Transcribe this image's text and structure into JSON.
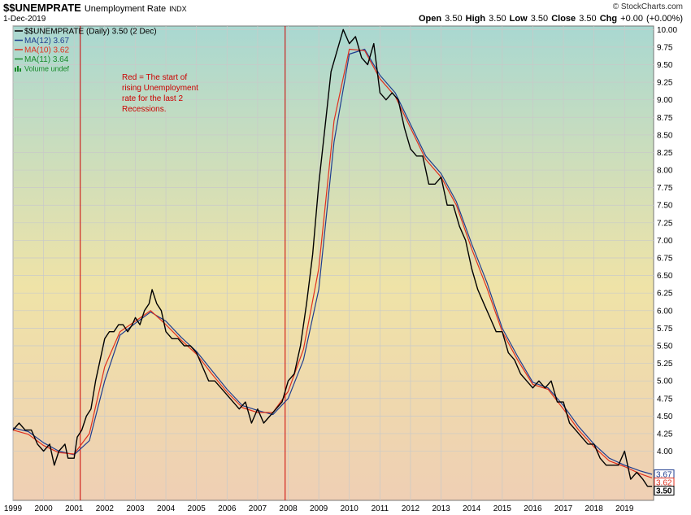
{
  "header": {
    "symbol": "$$UNEMPRATE",
    "name": "Unemployment Rate",
    "exchange": "INDX",
    "date": "1-Dec-2019",
    "brand": "© StockCharts.com",
    "open_label": "Open",
    "open": "3.50",
    "high_label": "High",
    "high": "3.50",
    "low_label": "Low",
    "low": "3.50",
    "close_label": "Close",
    "close": "3.50",
    "chg_label": "Chg",
    "chg": "+0.00 (+0.00%)"
  },
  "legend": [
    {
      "text": "$$UNEMPRATE (Daily) 3.50 (2 Dec)",
      "color": "#000000",
      "mark": "line"
    },
    {
      "text": "MA(12) 3.67",
      "color": "#1f3d8f",
      "mark": "line"
    },
    {
      "text": "MA(10) 3.62",
      "color": "#e0301e",
      "mark": "line"
    },
    {
      "text": "MA(11) 3.64",
      "color": "#1a8a2a",
      "mark": "line"
    },
    {
      "text": "Volume undef",
      "color": "#1a8a2a",
      "mark": "bars"
    }
  ],
  "annotation": {
    "lines": [
      "Red = The start of",
      "rising Unemployment",
      "rate for the last 2",
      "Recessions."
    ],
    "color": "#cc0000"
  },
  "price_tags": [
    {
      "value": 3.67,
      "text": "3.67",
      "color": "#1f3d8f",
      "bold": false
    },
    {
      "value": 3.62,
      "text": "3.62",
      "color": "#e0301e",
      "bold": false
    },
    {
      "value": 3.5,
      "text": "3.50",
      "color": "#000000",
      "bold": true
    }
  ],
  "chart_data": {
    "type": "line",
    "ylim": [
      3.3,
      10.05
    ],
    "xlim": [
      1999.0,
      2019.95
    ],
    "yticks": [
      4.0,
      4.25,
      4.5,
      4.75,
      5.0,
      5.25,
      5.5,
      5.75,
      6.0,
      6.25,
      6.5,
      6.75,
      7.0,
      7.25,
      7.5,
      7.75,
      8.0,
      8.25,
      8.5,
      8.75,
      9.0,
      9.25,
      9.5,
      9.75,
      10.0
    ],
    "ytick_labels": [
      "4.00",
      "4.25",
      "4.50",
      "4.75",
      "5.00",
      "5.25",
      "5.50",
      "5.75",
      "6.00",
      "6.25",
      "6.50",
      "6.75",
      "7.00",
      "7.25",
      "7.50",
      "7.75",
      "8.00",
      "8.25",
      "8.50",
      "8.75",
      "9.00",
      "9.25",
      "9.50",
      "9.75",
      "10.00"
    ],
    "xticks": [
      1999,
      2000,
      2001,
      2002,
      2003,
      2004,
      2005,
      2006,
      2007,
      2008,
      2009,
      2010,
      2011,
      2012,
      2013,
      2014,
      2015,
      2016,
      2017,
      2018,
      2019
    ],
    "xtick_labels": [
      "1999",
      "2000",
      "2001",
      "2002",
      "2003",
      "2004",
      "2005",
      "2006",
      "2007",
      "2008",
      "2009",
      "2010",
      "2011",
      "2012",
      "2013",
      "2014",
      "2015",
      "2016",
      "2017",
      "2018",
      "2019"
    ],
    "vlines": [
      2001.2,
      2007.9
    ],
    "vline_color": "#cc0000",
    "series": [
      {
        "name": "$$UNEMPRATE",
        "color": "#000000",
        "role": "price",
        "points": [
          [
            1999.0,
            4.3
          ],
          [
            1999.2,
            4.4
          ],
          [
            1999.4,
            4.3
          ],
          [
            1999.6,
            4.3
          ],
          [
            1999.8,
            4.1
          ],
          [
            2000.0,
            4.0
          ],
          [
            2000.2,
            4.1
          ],
          [
            2000.35,
            3.8
          ],
          [
            2000.5,
            4.0
          ],
          [
            2000.7,
            4.1
          ],
          [
            2000.8,
            3.9
          ],
          [
            2001.0,
            3.9
          ],
          [
            2001.1,
            4.2
          ],
          [
            2001.25,
            4.3
          ],
          [
            2001.4,
            4.5
          ],
          [
            2001.55,
            4.6
          ],
          [
            2001.7,
            5.0
          ],
          [
            2001.85,
            5.3
          ],
          [
            2002.0,
            5.6
          ],
          [
            2002.15,
            5.7
          ],
          [
            2002.3,
            5.7
          ],
          [
            2002.45,
            5.8
          ],
          [
            2002.6,
            5.8
          ],
          [
            2002.75,
            5.7
          ],
          [
            2002.9,
            5.8
          ],
          [
            2003.0,
            5.9
          ],
          [
            2003.15,
            5.8
          ],
          [
            2003.3,
            6.0
          ],
          [
            2003.45,
            6.1
          ],
          [
            2003.55,
            6.3
          ],
          [
            2003.7,
            6.1
          ],
          [
            2003.85,
            6.0
          ],
          [
            2004.0,
            5.7
          ],
          [
            2004.2,
            5.6
          ],
          [
            2004.4,
            5.6
          ],
          [
            2004.6,
            5.5
          ],
          [
            2004.8,
            5.5
          ],
          [
            2005.0,
            5.4
          ],
          [
            2005.2,
            5.2
          ],
          [
            2005.4,
            5.0
          ],
          [
            2005.6,
            5.0
          ],
          [
            2005.8,
            4.9
          ],
          [
            2006.0,
            4.8
          ],
          [
            2006.2,
            4.7
          ],
          [
            2006.4,
            4.6
          ],
          [
            2006.6,
            4.7
          ],
          [
            2006.8,
            4.4
          ],
          [
            2007.0,
            4.6
          ],
          [
            2007.2,
            4.4
          ],
          [
            2007.4,
            4.5
          ],
          [
            2007.6,
            4.6
          ],
          [
            2007.8,
            4.7
          ],
          [
            2008.0,
            5.0
          ],
          [
            2008.2,
            5.1
          ],
          [
            2008.4,
            5.5
          ],
          [
            2008.6,
            6.1
          ],
          [
            2008.8,
            6.8
          ],
          [
            2009.0,
            7.8
          ],
          [
            2009.2,
            8.6
          ],
          [
            2009.4,
            9.4
          ],
          [
            2009.6,
            9.7
          ],
          [
            2009.8,
            10.0
          ],
          [
            2010.0,
            9.8
          ],
          [
            2010.2,
            9.9
          ],
          [
            2010.4,
            9.6
          ],
          [
            2010.6,
            9.5
          ],
          [
            2010.8,
            9.8
          ],
          [
            2011.0,
            9.1
          ],
          [
            2011.2,
            9.0
          ],
          [
            2011.4,
            9.1
          ],
          [
            2011.6,
            9.0
          ],
          [
            2011.8,
            8.6
          ],
          [
            2012.0,
            8.3
          ],
          [
            2012.2,
            8.2
          ],
          [
            2012.4,
            8.2
          ],
          [
            2012.6,
            7.8
          ],
          [
            2012.8,
            7.8
          ],
          [
            2013.0,
            7.9
          ],
          [
            2013.2,
            7.5
          ],
          [
            2013.4,
            7.5
          ],
          [
            2013.6,
            7.2
          ],
          [
            2013.8,
            7.0
          ],
          [
            2014.0,
            6.6
          ],
          [
            2014.2,
            6.3
          ],
          [
            2014.4,
            6.1
          ],
          [
            2014.6,
            5.9
          ],
          [
            2014.8,
            5.7
          ],
          [
            2015.0,
            5.7
          ],
          [
            2015.2,
            5.4
          ],
          [
            2015.4,
            5.3
          ],
          [
            2015.6,
            5.1
          ],
          [
            2015.8,
            5.0
          ],
          [
            2016.0,
            4.9
          ],
          [
            2016.2,
            5.0
          ],
          [
            2016.4,
            4.9
          ],
          [
            2016.6,
            5.0
          ],
          [
            2016.8,
            4.7
          ],
          [
            2017.0,
            4.7
          ],
          [
            2017.2,
            4.4
          ],
          [
            2017.4,
            4.3
          ],
          [
            2017.6,
            4.2
          ],
          [
            2017.8,
            4.1
          ],
          [
            2018.0,
            4.1
          ],
          [
            2018.2,
            3.9
          ],
          [
            2018.4,
            3.8
          ],
          [
            2018.6,
            3.8
          ],
          [
            2018.8,
            3.8
          ],
          [
            2019.0,
            4.0
          ],
          [
            2019.2,
            3.6
          ],
          [
            2019.4,
            3.7
          ],
          [
            2019.6,
            3.6
          ],
          [
            2019.75,
            3.5
          ],
          [
            2019.9,
            3.5
          ]
        ]
      },
      {
        "name": "MA(12)",
        "color": "#1f3d8f",
        "role": "ma",
        "points": [
          [
            1999.0,
            4.33
          ],
          [
            1999.5,
            4.28
          ],
          [
            2000.0,
            4.12
          ],
          [
            2000.5,
            4.0
          ],
          [
            2001.0,
            3.95
          ],
          [
            2001.5,
            4.15
          ],
          [
            2002.0,
            5.0
          ],
          [
            2002.5,
            5.65
          ],
          [
            2003.0,
            5.82
          ],
          [
            2003.5,
            5.98
          ],
          [
            2004.0,
            5.85
          ],
          [
            2004.5,
            5.62
          ],
          [
            2005.0,
            5.42
          ],
          [
            2005.5,
            5.15
          ],
          [
            2006.0,
            4.88
          ],
          [
            2006.5,
            4.65
          ],
          [
            2007.0,
            4.58
          ],
          [
            2007.5,
            4.52
          ],
          [
            2008.0,
            4.75
          ],
          [
            2008.5,
            5.3
          ],
          [
            2009.0,
            6.3
          ],
          [
            2009.5,
            8.4
          ],
          [
            2010.0,
            9.65
          ],
          [
            2010.5,
            9.72
          ],
          [
            2011.0,
            9.35
          ],
          [
            2011.5,
            9.1
          ],
          [
            2012.0,
            8.65
          ],
          [
            2012.5,
            8.2
          ],
          [
            2013.0,
            7.95
          ],
          [
            2013.5,
            7.55
          ],
          [
            2014.0,
            6.95
          ],
          [
            2014.5,
            6.4
          ],
          [
            2015.0,
            5.75
          ],
          [
            2015.5,
            5.35
          ],
          [
            2016.0,
            4.98
          ],
          [
            2016.5,
            4.9
          ],
          [
            2017.0,
            4.65
          ],
          [
            2017.5,
            4.35
          ],
          [
            2018.0,
            4.1
          ],
          [
            2018.5,
            3.9
          ],
          [
            2019.0,
            3.8
          ],
          [
            2019.5,
            3.72
          ],
          [
            2019.9,
            3.67
          ]
        ]
      },
      {
        "name": "MA(10)",
        "color": "#e0301e",
        "role": "ma",
        "points": [
          [
            1999.0,
            4.3
          ],
          [
            1999.5,
            4.24
          ],
          [
            2000.0,
            4.08
          ],
          [
            2000.5,
            3.98
          ],
          [
            2001.0,
            3.96
          ],
          [
            2001.5,
            4.25
          ],
          [
            2002.0,
            5.2
          ],
          [
            2002.5,
            5.7
          ],
          [
            2003.0,
            5.85
          ],
          [
            2003.5,
            6.0
          ],
          [
            2004.0,
            5.8
          ],
          [
            2004.5,
            5.58
          ],
          [
            2005.0,
            5.38
          ],
          [
            2005.5,
            5.1
          ],
          [
            2006.0,
            4.84
          ],
          [
            2006.5,
            4.62
          ],
          [
            2007.0,
            4.55
          ],
          [
            2007.5,
            4.55
          ],
          [
            2008.0,
            4.85
          ],
          [
            2008.5,
            5.45
          ],
          [
            2009.0,
            6.6
          ],
          [
            2009.5,
            8.7
          ],
          [
            2010.0,
            9.72
          ],
          [
            2010.5,
            9.7
          ],
          [
            2011.0,
            9.3
          ],
          [
            2011.5,
            9.05
          ],
          [
            2012.0,
            8.6
          ],
          [
            2012.5,
            8.15
          ],
          [
            2013.0,
            7.9
          ],
          [
            2013.5,
            7.5
          ],
          [
            2014.0,
            6.88
          ],
          [
            2014.5,
            6.32
          ],
          [
            2015.0,
            5.7
          ],
          [
            2015.5,
            5.3
          ],
          [
            2016.0,
            4.95
          ],
          [
            2016.5,
            4.88
          ],
          [
            2017.0,
            4.6
          ],
          [
            2017.5,
            4.3
          ],
          [
            2018.0,
            4.06
          ],
          [
            2018.5,
            3.86
          ],
          [
            2019.0,
            3.78
          ],
          [
            2019.5,
            3.68
          ],
          [
            2019.9,
            3.62
          ]
        ]
      }
    ]
  }
}
